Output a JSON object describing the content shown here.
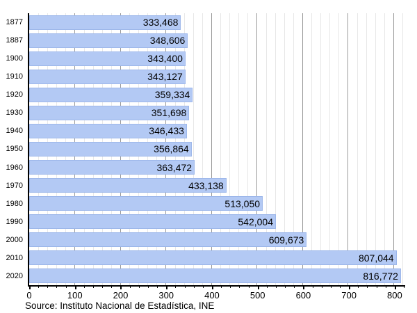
{
  "chart_data": {
    "type": "bar",
    "orientation": "horizontal",
    "title": "",
    "xlabel": "",
    "ylabel": "",
    "categories": [
      "1877",
      "1887",
      "1900",
      "1910",
      "1920",
      "1930",
      "1940",
      "1950",
      "1960",
      "1970",
      "1980",
      "1990",
      "2000",
      "2010",
      "2020"
    ],
    "values": [
      333468,
      348606,
      343400,
      343127,
      359334,
      351698,
      346433,
      356864,
      363472,
      433138,
      513050,
      542004,
      609673,
      807044,
      816772
    ],
    "value_labels": [
      "333,468",
      "348,606",
      "343,400",
      "343,127",
      "359,334",
      "351,698",
      "346,433",
      "356,864",
      "363,472",
      "433,138",
      "513,050",
      "542,004",
      "609,673",
      "807,044",
      "816,772"
    ],
    "x_axis": {
      "tick_labels": [
        "0",
        "100",
        "200",
        "300",
        "400",
        "500",
        "600",
        "700",
        "800"
      ],
      "major_step": 100,
      "minor_step": 20,
      "min": 0,
      "max": 826,
      "value_divisor": 1000
    },
    "grid": true,
    "legend": false
  },
  "colors": {
    "bar_fill": "#b3c9f4",
    "bar_border": "#9db7ea",
    "grid_minor": "#e8e8e8",
    "grid_major": "#9a9a9a",
    "axis": "#000000",
    "background": "#ffffff"
  },
  "source_note": "Source: Instituto Nacional de Estadística, INE"
}
